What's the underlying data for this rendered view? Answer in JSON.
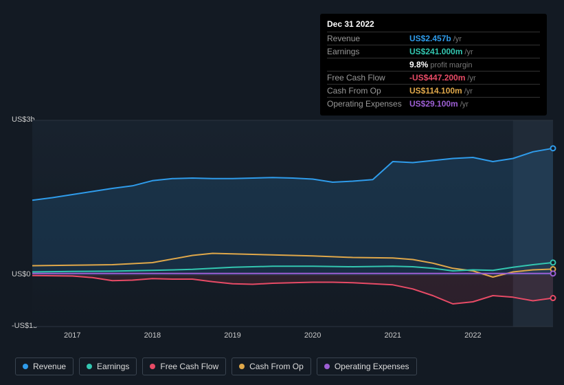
{
  "tooltip": {
    "date": "Dec 31 2022",
    "rows": [
      {
        "label": "Revenue",
        "value": "US$2.457b",
        "unit": "/yr",
        "color": "#2f9ceb"
      },
      {
        "label": "Earnings",
        "value": "US$241.000m",
        "unit": "/yr",
        "color": "#33c7b1"
      },
      {
        "label": "",
        "value": "9.8%",
        "unit": "profit margin",
        "color": "#ffffff"
      },
      {
        "label": "Free Cash Flow",
        "value": "-US$447.200m",
        "unit": "/yr",
        "color": "#e84b66"
      },
      {
        "label": "Cash From Op",
        "value": "US$114.100m",
        "unit": "/yr",
        "color": "#e0a84a"
      },
      {
        "label": "Operating Expenses",
        "value": "US$29.100m",
        "unit": "/yr",
        "color": "#9d5fd4"
      }
    ]
  },
  "chart": {
    "background": "#131a23",
    "plot_bg_top": "#18222e",
    "plot_bg_bottom": "#131a23",
    "highlight_band_color": "#202b38",
    "grid_color": "#2b3440",
    "y_axis": {
      "min": -1000000000,
      "max": 3000000000,
      "ticks": [
        {
          "v": 3000000000,
          "label": "US$3b"
        },
        {
          "v": 0,
          "label": "US$0"
        },
        {
          "v": -1000000000,
          "label": "-US$1b"
        }
      ]
    },
    "x_axis": {
      "start": 2016.5,
      "end": 2023.0,
      "ticks": [
        2017,
        2018,
        2019,
        2020,
        2021,
        2022
      ]
    },
    "highlight_from": 2022.5,
    "series": [
      {
        "name": "Revenue",
        "color": "#2f9ceb",
        "fill": true,
        "fill_opacity": 0.15,
        "data": [
          [
            2016.5,
            1450000000
          ],
          [
            2016.75,
            1500000000
          ],
          [
            2017,
            1560000000
          ],
          [
            2017.25,
            1620000000
          ],
          [
            2017.5,
            1680000000
          ],
          [
            2017.75,
            1730000000
          ],
          [
            2018,
            1830000000
          ],
          [
            2018.25,
            1870000000
          ],
          [
            2018.5,
            1880000000
          ],
          [
            2018.75,
            1870000000
          ],
          [
            2019,
            1870000000
          ],
          [
            2019.25,
            1880000000
          ],
          [
            2019.5,
            1890000000
          ],
          [
            2019.75,
            1880000000
          ],
          [
            2020,
            1860000000
          ],
          [
            2020.25,
            1800000000
          ],
          [
            2020.5,
            1820000000
          ],
          [
            2020.75,
            1850000000
          ],
          [
            2021,
            2200000000
          ],
          [
            2021.25,
            2180000000
          ],
          [
            2021.5,
            2220000000
          ],
          [
            2021.75,
            2260000000
          ],
          [
            2022,
            2280000000
          ],
          [
            2022.25,
            2200000000
          ],
          [
            2022.5,
            2260000000
          ],
          [
            2022.75,
            2390000000
          ],
          [
            2023,
            2457000000
          ]
        ]
      },
      {
        "name": "Cash From Op",
        "color": "#e0a84a",
        "fill": false,
        "data": [
          [
            2016.5,
            180000000
          ],
          [
            2017,
            190000000
          ],
          [
            2017.5,
            200000000
          ],
          [
            2018,
            240000000
          ],
          [
            2018.5,
            380000000
          ],
          [
            2018.75,
            420000000
          ],
          [
            2019,
            410000000
          ],
          [
            2019.5,
            390000000
          ],
          [
            2020,
            370000000
          ],
          [
            2020.5,
            340000000
          ],
          [
            2021,
            330000000
          ],
          [
            2021.25,
            300000000
          ],
          [
            2021.5,
            230000000
          ],
          [
            2021.75,
            130000000
          ],
          [
            2022,
            80000000
          ],
          [
            2022.25,
            -40000000
          ],
          [
            2022.5,
            60000000
          ],
          [
            2022.75,
            100000000
          ],
          [
            2023,
            114100000
          ]
        ]
      },
      {
        "name": "Earnings",
        "color": "#33c7b1",
        "fill": false,
        "data": [
          [
            2016.5,
            60000000
          ],
          [
            2017,
            70000000
          ],
          [
            2017.5,
            75000000
          ],
          [
            2018,
            90000000
          ],
          [
            2018.5,
            110000000
          ],
          [
            2019,
            150000000
          ],
          [
            2019.5,
            170000000
          ],
          [
            2020,
            170000000
          ],
          [
            2020.5,
            160000000
          ],
          [
            2021,
            170000000
          ],
          [
            2021.25,
            160000000
          ],
          [
            2021.5,
            130000000
          ],
          [
            2021.75,
            80000000
          ],
          [
            2022,
            100000000
          ],
          [
            2022.25,
            90000000
          ],
          [
            2022.5,
            150000000
          ],
          [
            2022.75,
            200000000
          ],
          [
            2023,
            241000000
          ]
        ]
      },
      {
        "name": "Operating Expenses",
        "color": "#9d5fd4",
        "fill": false,
        "data": [
          [
            2016.5,
            30000000
          ],
          [
            2017,
            30000000
          ],
          [
            2018,
            30000000
          ],
          [
            2019,
            30000000
          ],
          [
            2020,
            30000000
          ],
          [
            2021,
            30000000
          ],
          [
            2022,
            29000000
          ],
          [
            2023,
            29100000
          ]
        ]
      },
      {
        "name": "Free Cash Flow",
        "color": "#e84b66",
        "fill": true,
        "fill_opacity": 0.12,
        "data": [
          [
            2016.5,
            -10000000
          ],
          [
            2017,
            -20000000
          ],
          [
            2017.25,
            -50000000
          ],
          [
            2017.5,
            -110000000
          ],
          [
            2017.75,
            -100000000
          ],
          [
            2018,
            -70000000
          ],
          [
            2018.25,
            -80000000
          ],
          [
            2018.5,
            -80000000
          ],
          [
            2018.75,
            -130000000
          ],
          [
            2019,
            -170000000
          ],
          [
            2019.25,
            -180000000
          ],
          [
            2019.5,
            -160000000
          ],
          [
            2019.75,
            -150000000
          ],
          [
            2020,
            -140000000
          ],
          [
            2020.25,
            -140000000
          ],
          [
            2020.5,
            -150000000
          ],
          [
            2020.75,
            -170000000
          ],
          [
            2021,
            -190000000
          ],
          [
            2021.25,
            -270000000
          ],
          [
            2021.5,
            -400000000
          ],
          [
            2021.75,
            -560000000
          ],
          [
            2022,
            -520000000
          ],
          [
            2022.25,
            -400000000
          ],
          [
            2022.5,
            -430000000
          ],
          [
            2022.75,
            -500000000
          ],
          [
            2023,
            -447200000
          ]
        ]
      }
    ],
    "legend": [
      {
        "name": "Revenue",
        "color": "#2f9ceb"
      },
      {
        "name": "Earnings",
        "color": "#33c7b1"
      },
      {
        "name": "Free Cash Flow",
        "color": "#e84b66"
      },
      {
        "name": "Cash From Op",
        "color": "#e0a84a"
      },
      {
        "name": "Operating Expenses",
        "color": "#9d5fd4"
      }
    ]
  }
}
